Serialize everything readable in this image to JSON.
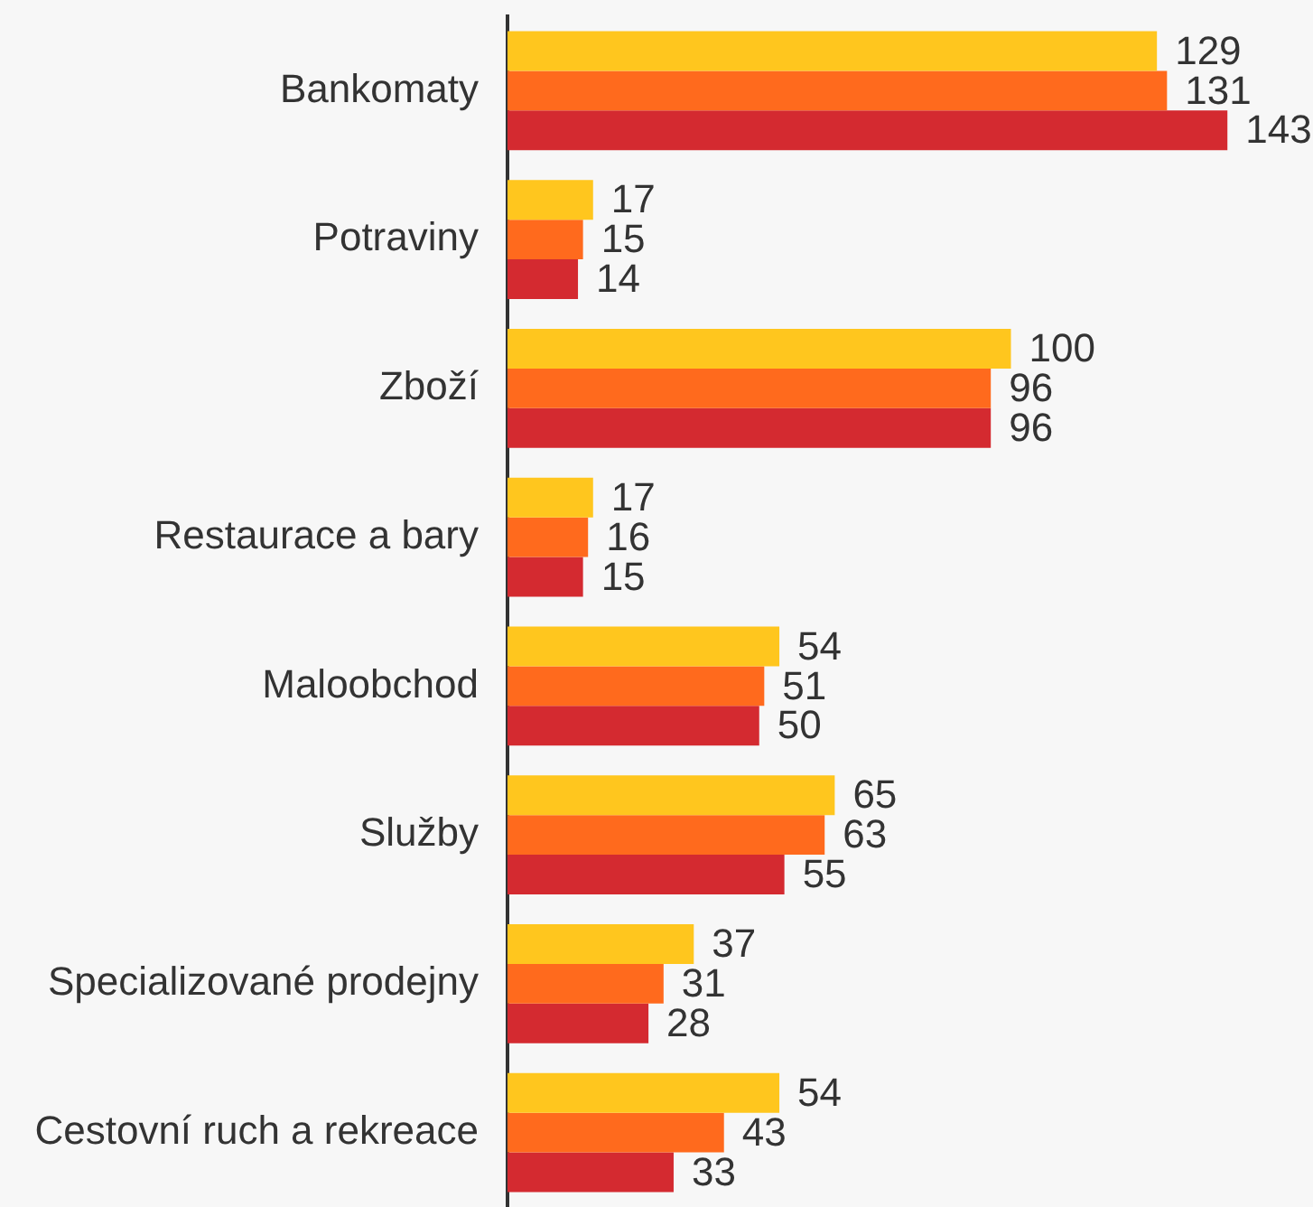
{
  "chart_data": {
    "type": "bar",
    "orientation": "horizontal",
    "categories": [
      "Bankomaty",
      "Potraviny",
      "Zboží",
      "Restaurace a bary",
      "Maloobchod",
      "Služby",
      "Specializované prodejny",
      "Cestovní ruch a rekreace"
    ],
    "series": [
      {
        "color": "#ffc61e",
        "values": [
          129,
          17,
          100,
          17,
          54,
          65,
          37,
          54
        ]
      },
      {
        "color": "#ff6a1d",
        "values": [
          131,
          15,
          96,
          16,
          51,
          63,
          31,
          43
        ]
      },
      {
        "color": "#d42a30",
        "values": [
          143,
          14,
          96,
          15,
          50,
          55,
          28,
          33
        ]
      }
    ],
    "data_labels": true,
    "tick_labels": "y"
  }
}
